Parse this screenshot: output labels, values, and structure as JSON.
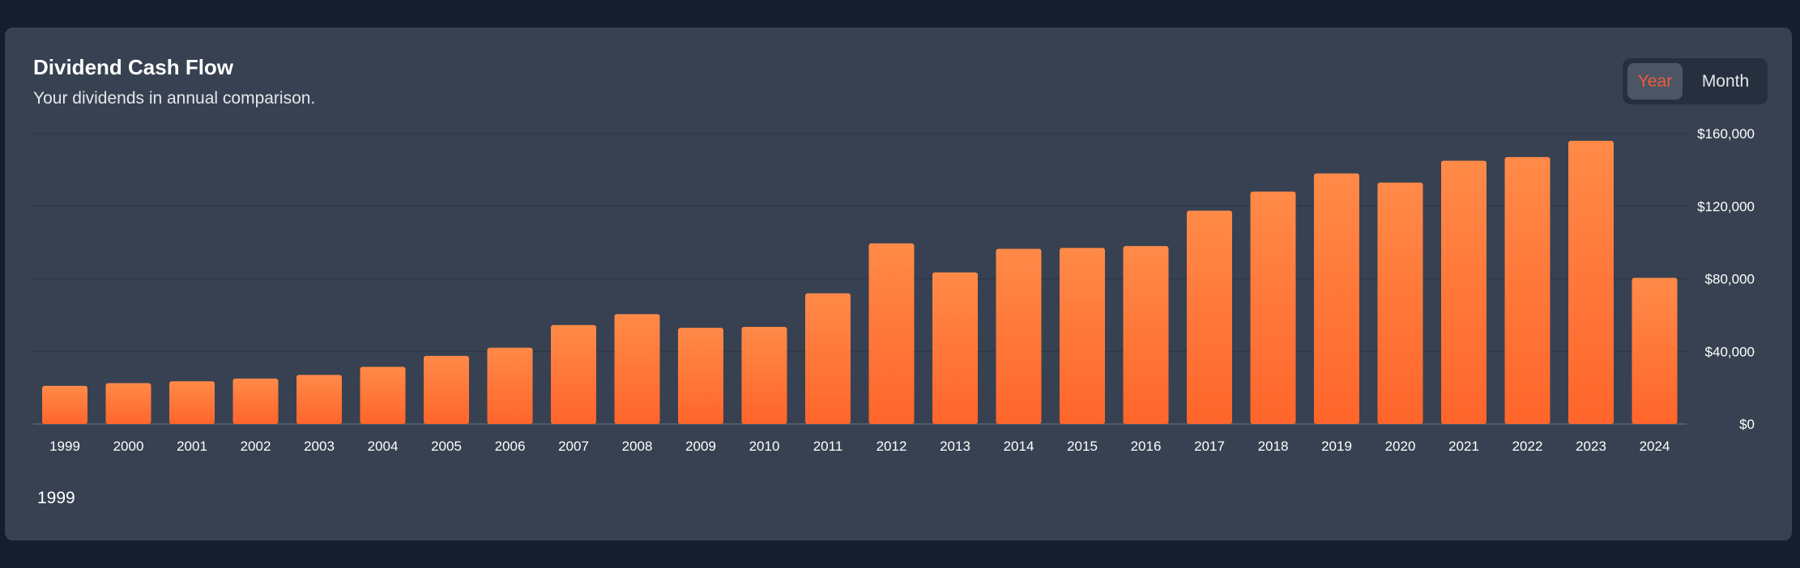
{
  "header": {
    "title": "Dividend Cash Flow",
    "subtitle": "Your dividends in annual comparison."
  },
  "toggle": {
    "year_label": "Year",
    "month_label": "Month",
    "selected": "Year"
  },
  "footer": {
    "selected_category": "1999"
  },
  "colors": {
    "bar_top": "#ff8a48",
    "bar_bottom": "#ff652b",
    "accent": "#f05a3e",
    "card": "#374151",
    "page": "#161e2e"
  },
  "chart_data": {
    "type": "bar",
    "title": "Dividend Cash Flow",
    "subtitle": "Your dividends in annual comparison.",
    "categories": [
      "1999",
      "2000",
      "2001",
      "2002",
      "2003",
      "2004",
      "2005",
      "2006",
      "2007",
      "2008",
      "2009",
      "2010",
      "2011",
      "2012",
      "2013",
      "2014",
      "2015",
      "2016",
      "2017",
      "2018",
      "2019",
      "2020",
      "2021",
      "2022",
      "2023",
      "2024"
    ],
    "values": [
      21000,
      22500,
      23500,
      25000,
      27000,
      31500,
      37500,
      42000,
      54500,
      60500,
      53000,
      53500,
      72000,
      99500,
      83500,
      96500,
      97000,
      98000,
      117500,
      128000,
      138000,
      133000,
      145000,
      147000,
      156000,
      80500
    ],
    "y_ticks": [
      0,
      40000,
      80000,
      120000,
      160000
    ],
    "y_tick_labels": [
      "$0",
      "$40,000",
      "$80,000",
      "$120,000",
      "$160,000"
    ],
    "ylim": [
      0,
      160000
    ],
    "y_axis_position": "right",
    "grid": true,
    "legend": "none"
  }
}
